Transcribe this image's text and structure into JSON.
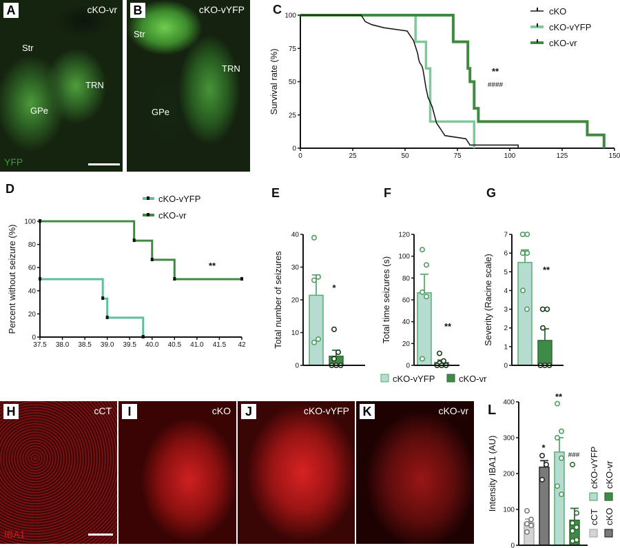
{
  "colors": {
    "ckO": "#1a1a1a",
    "ckO_vyfp": "#7fc89a",
    "ckO_vyfp_fill": "#b6dcd2",
    "ckO_vyfp_stroke": "#5aaa6e",
    "ckO_vr": "#3f8a3f",
    "ckO_vr_fill": "#3f8a47",
    "cct_fill": "#d4d4d4",
    "cko_fill": "#7a7a7a",
    "yfp_green": "#4caf50",
    "iba1_red": "#e02020"
  },
  "panels": {
    "A": {
      "letter": "A",
      "tag": "cKO-vr",
      "regions": [
        "Str",
        "TRN",
        "GPe"
      ],
      "stain": "YFP"
    },
    "B": {
      "letter": "B",
      "tag": "cKO-vYFP",
      "regions": [
        "Str",
        "TRN",
        "GPe"
      ]
    },
    "H": {
      "letter": "H",
      "tag": "cCT",
      "stain": "IBA1"
    },
    "I": {
      "letter": "I",
      "tag": "cKO"
    },
    "J": {
      "letter": "J",
      "tag": "cKO-vYFP"
    },
    "K": {
      "letter": "K",
      "tag": "cKO-vr"
    }
  },
  "chart_data": [
    {
      "id": "C",
      "type": "line",
      "subtype": "kaplan-meier",
      "title": "",
      "xlabel": "",
      "ylabel": "Survival rate (%)",
      "xlim": [
        0,
        150
      ],
      "ylim": [
        0,
        100
      ],
      "xticks": [
        0,
        25,
        50,
        75,
        100,
        125,
        150
      ],
      "yticks": [
        0,
        25,
        50,
        75,
        100
      ],
      "legend": [
        "cKO",
        "cKO-vYFP",
        "cKO-vr"
      ],
      "legend_position": "top-right",
      "annotations": [
        "**",
        "####"
      ],
      "series": [
        {
          "name": "cKO",
          "steps": [
            [
              0,
              100
            ],
            [
              29,
              100
            ],
            [
              30,
              97.6
            ],
            [
              31,
              95.2
            ],
            [
              34,
              92.9
            ],
            [
              40,
              90.5
            ],
            [
              51,
              88.1
            ],
            [
              52,
              85.7
            ],
            [
              53,
              83.3
            ],
            [
              54,
              81
            ],
            [
              55,
              76.2
            ],
            [
              56,
              71.4
            ],
            [
              56.5,
              66.7
            ],
            [
              57,
              64.3
            ],
            [
              58,
              61.9
            ],
            [
              58.5,
              59.5
            ],
            [
              59,
              54.8
            ],
            [
              59.5,
              50
            ],
            [
              60,
              45.2
            ],
            [
              61,
              38.1
            ],
            [
              63,
              31
            ],
            [
              65,
              19
            ],
            [
              66,
              16.7
            ],
            [
              67,
              14.3
            ],
            [
              68,
              11.9
            ],
            [
              69,
              9.5
            ],
            [
              79,
              7.1
            ],
            [
              80,
              4.8
            ],
            [
              81,
              2.4
            ],
            [
              104,
              2.4
            ],
            [
              104,
              0
            ]
          ]
        },
        {
          "name": "cKO-vYFP",
          "steps": [
            [
              0,
              100
            ],
            [
              55,
              100
            ],
            [
              55,
              80
            ],
            [
              60,
              80
            ],
            [
              60,
              60
            ],
            [
              62,
              60
            ],
            [
              62,
              20
            ],
            [
              83,
              20
            ],
            [
              83,
              0
            ]
          ]
        },
        {
          "name": "cKO-vr",
          "steps": [
            [
              0,
              100
            ],
            [
              73,
              100
            ],
            [
              73,
              80
            ],
            [
              80,
              80
            ],
            [
              80,
              60
            ],
            [
              81,
              60
            ],
            [
              81,
              50
            ],
            [
              83,
              50
            ],
            [
              83,
              30
            ],
            [
              85,
              30
            ],
            [
              85,
              20
            ],
            [
              137,
              20
            ],
            [
              137,
              10
            ],
            [
              145,
              10
            ],
            [
              145,
              0
            ]
          ]
        }
      ]
    },
    {
      "id": "D",
      "type": "line",
      "subtype": "kaplan-meier",
      "ylabel": "Percent without seizure (%)",
      "xlabel": "",
      "xlim": [
        37.5,
        42
      ],
      "ylim": [
        0,
        100
      ],
      "xticks": [
        "37.5",
        "38.0",
        "38.5",
        "39.0",
        "39.5",
        "40.0",
        "40.5",
        "41.0",
        "41.5",
        "42"
      ],
      "yticks": [
        0,
        20,
        40,
        60,
        80,
        100
      ],
      "legend": [
        "cKO-vYFP",
        "cKO-vr"
      ],
      "legend_position": "top",
      "annotations": [
        "**"
      ],
      "series": [
        {
          "name": "cKO-vYFP",
          "steps": [
            [
              37.5,
              50
            ],
            [
              38.9,
              50
            ],
            [
              38.9,
              33.3
            ],
            [
              39.0,
              33.3
            ],
            [
              39.0,
              16.7
            ],
            [
              39.8,
              16.7
            ],
            [
              39.8,
              0
            ]
          ]
        },
        {
          "name": "cKO-vr",
          "steps": [
            [
              37.5,
              100
            ],
            [
              39.6,
              100
            ],
            [
              39.6,
              83.3
            ],
            [
              40.0,
              83.3
            ],
            [
              40.0,
              66.7
            ],
            [
              40.5,
              66.7
            ],
            [
              40.5,
              50
            ],
            [
              42,
              50
            ]
          ]
        }
      ]
    },
    {
      "id": "E",
      "type": "bar",
      "categories": [
        "cKO-vYFP",
        "cKO-vr"
      ],
      "values": [
        21.4,
        2.8
      ],
      "errors": [
        6.2,
        1.8
      ],
      "points": [
        [
          39,
          27,
          26,
          8,
          7
        ],
        [
          11,
          4,
          2,
          0,
          0,
          0
        ]
      ],
      "ylabel": "Total number of seizures",
      "ylim": [
        0,
        40
      ],
      "yticks": [
        0,
        10,
        20,
        30,
        40
      ],
      "annotations": [
        "*"
      ]
    },
    {
      "id": "F",
      "type": "bar",
      "categories": [
        "cKO-vYFP",
        "cKO-vr"
      ],
      "values": [
        66.5,
        2.5
      ],
      "errors": [
        17,
        2.3
      ],
      "points": [
        [
          106,
          92,
          67,
          63,
          6
        ],
        [
          11,
          4,
          2,
          0,
          0,
          0
        ]
      ],
      "ylabel": "Total time seizures (s)",
      "ylim": [
        0,
        120
      ],
      "yticks": [
        0,
        20,
        40,
        60,
        80,
        100,
        120
      ],
      "annotations": [
        "**"
      ],
      "legend": [
        "cKO-vYFP",
        "cKO-vr"
      ]
    },
    {
      "id": "G",
      "type": "bar",
      "categories": [
        "cKO-vYFP",
        "cKO-vr"
      ],
      "values": [
        5.5,
        1.33
      ],
      "errors": [
        0.67,
        0.62
      ],
      "points": [
        [
          7,
          7,
          6,
          6,
          4,
          3
        ],
        [
          3,
          3,
          2,
          0,
          0,
          0
        ]
      ],
      "ylabel": "Severity (Racine scale)",
      "ylim": [
        0,
        7
      ],
      "yticks": [
        0,
        1,
        2,
        3,
        4,
        5,
        6,
        7
      ],
      "annotations": [
        "**"
      ]
    },
    {
      "id": "L",
      "type": "bar",
      "categories": [
        "cCT",
        "cKO",
        "cKO-vYFP",
        "cKO-vr"
      ],
      "values": [
        63,
        218,
        260,
        70
      ],
      "errors": [
        10,
        18,
        40,
        33
      ],
      "points": [
        [
          96,
          72,
          60,
          55,
          37
        ],
        [
          250,
          225,
          183
        ],
        [
          395,
          318,
          300,
          243,
          165,
          142
        ],
        [
          225,
          90,
          62,
          50,
          40,
          15,
          12
        ]
      ],
      "ylabel": "Intensity IBA1 (AU)",
      "ylim": [
        0,
        400
      ],
      "yticks": [
        0,
        100,
        200,
        300,
        400
      ],
      "annotations": [
        "*",
        "**",
        "###"
      ],
      "legend": [
        "cCT",
        "cKO",
        "cKO-vYFP",
        "cKO-vr"
      ]
    }
  ]
}
